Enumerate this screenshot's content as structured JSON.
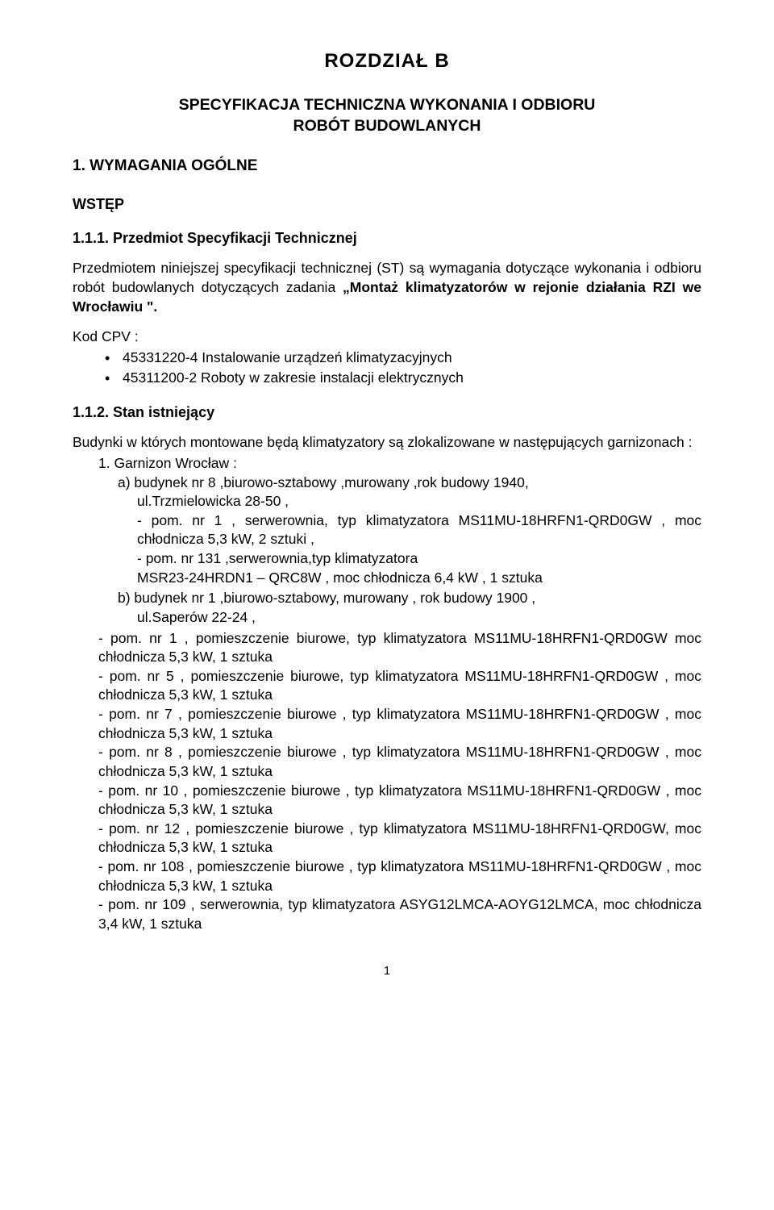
{
  "chapter": {
    "title": "ROZDZIAŁ  B"
  },
  "spec": {
    "line1": "SPECYFIKACJA TECHNICZNA WYKONANIA I ODBIORU",
    "line2": "ROBÓT BUDOWLANYCH"
  },
  "section1": {
    "heading": "1. WYMAGANIA OGÓLNE",
    "wstep": "WSTĘP",
    "sub1": {
      "label": "1.1.1. Przedmiot Specyfikacji Technicznej",
      "para_pre": "Przedmiotem niniejszej specyfikacji technicznej (ST) są wymagania dotyczące wykonania i odbioru robót budowlanych dotyczących zadania ",
      "para_quoted": "„Montaż klimatyzatorów w rejonie działania  RZI we Wrocławiu \"."
    },
    "cpv": {
      "label": "Kod CPV :",
      "items": [
        "45331220-4 Instalowanie urządzeń klimatyzacyjnych",
        "45311200-2 Roboty w zakresie instalacji elektrycznych"
      ]
    },
    "sub2": {
      "label": "1.1.2. Stan istniejący",
      "intro": "Budynki w których montowane będą klimatyzatory są zlokalizowane w następujących garnizonach :",
      "g1_num": "1.  Garnizon Wrocław :",
      "a_label": "a)  budynek nr 8 ,biurowo-sztabowy ,murowany ,rok budowy 1940,",
      "a_ul": "ul.Trzmielowicka 28-50 ,",
      "a_pom1": "- pom. nr 1 , serwerownia, typ klimatyzatora MS11MU-18HRFN1-QRD0GW , moc chłodnicza 5,3 kW, 2 sztuki ,",
      "a_pom2a": "- pom. nr 131 ,serwerownia,typ klimatyzatora",
      "a_pom2b": "MSR23-24HRDN1 – QRC8W , moc chłodnicza 6,4 kW , 1 sztuka",
      "b_label": "b)  budynek nr 1 ,biurowo-sztabowy, murowany , rok budowy 1900 ,",
      "b_ul": "ul.Saperów 22-24 ,",
      "b_poms": [
        "- pom. nr 1 , pomieszczenie biurowe, typ klimatyzatora MS11MU-18HRFN1-QRD0GW moc chłodnicza 5,3 kW, 1 sztuka",
        "- pom. nr 5 , pomieszczenie biurowe, typ klimatyzatora MS11MU-18HRFN1-QRD0GW , moc chłodnicza 5,3 kW, 1 sztuka",
        "- pom. nr 7 , pomieszczenie biurowe , typ klimatyzatora MS11MU-18HRFN1-QRD0GW , moc chłodnicza 5,3 kW, 1 sztuka",
        "- pom. nr 8 , pomieszczenie biurowe , typ klimatyzatora MS11MU-18HRFN1-QRD0GW , moc chłodnicza 5,3 kW, 1 sztuka",
        "- pom. nr 10 , pomieszczenie biurowe , typ klimatyzatora MS11MU-18HRFN1-QRD0GW , moc chłodnicza 5,3 kW, 1 sztuka",
        "- pom. nr 12 , pomieszczenie biurowe , typ klimatyzatora MS11MU-18HRFN1-QRD0GW, moc chłodnicza 5,3 kW, 1 sztuka",
        "- pom. nr 108 , pomieszczenie biurowe , typ klimatyzatora MS11MU-18HRFN1-QRD0GW , moc chłodnicza 5,3 kW, 1 sztuka",
        "- pom. nr 109 , serwerownia, typ klimatyzatora ASYG12LMCA-AOYG12LMCA, moc chłodnicza 3,4 kW, 1 sztuka"
      ]
    }
  },
  "page_number": "1"
}
